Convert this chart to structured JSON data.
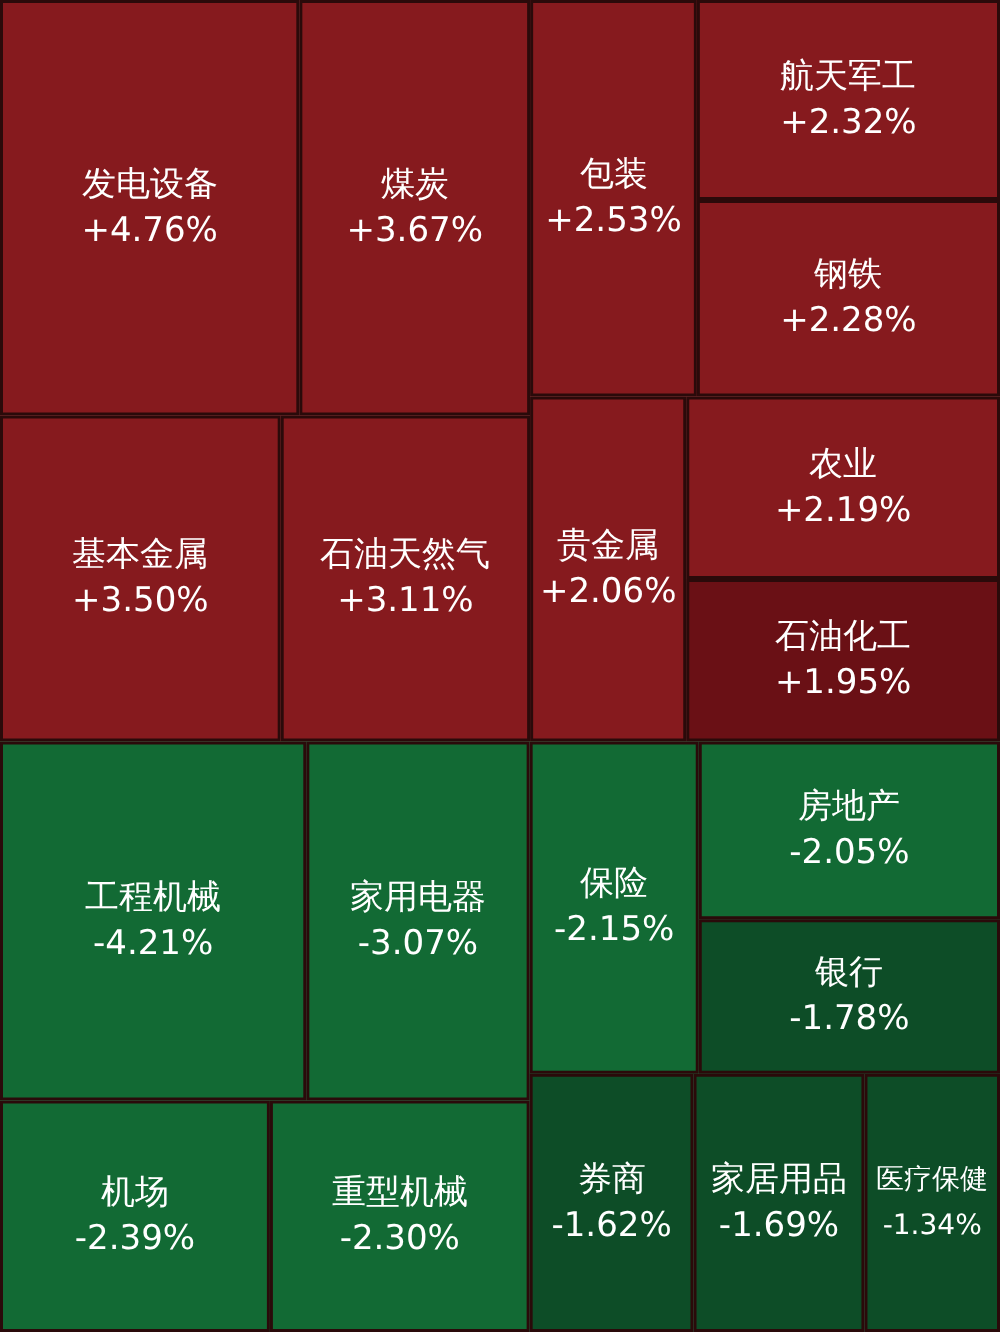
{
  "chart_data": {
    "type": "other",
    "categories": [
      "发电设备",
      "煤炭",
      "基本金属",
      "石油天然气",
      "包装",
      "航天军工",
      "钢铁",
      "贵金属",
      "农业",
      "石油化工",
      "工程机械",
      "家用电器",
      "机场",
      "重型机械",
      "保险",
      "房地产",
      "银行",
      "券商",
      "家居用品",
      "医疗保健"
    ],
    "values": [
      4.76,
      3.67,
      3.5,
      3.11,
      2.53,
      2.32,
      2.28,
      2.06,
      2.19,
      1.95,
      -4.21,
      -3.07,
      -2.39,
      -2.3,
      -2.15,
      -2.05,
      -1.78,
      -1.62,
      -1.69,
      -1.34
    ],
    "value_labels": [
      "+4.76%",
      "+3.67%",
      "+3.50%",
      "+3.11%",
      "+2.53%",
      "+2.32%",
      "+2.28%",
      "+2.06%",
      "+2.19%",
      "+1.95%",
      "-4.21%",
      "-3.07%",
      "-2.39%",
      "-2.30%",
      "-2.15%",
      "-2.05%",
      "-1.78%",
      "-1.62%",
      "-1.69%",
      "-1.34%"
    ],
    "colors": [
      "#861a1e",
      "#861a1e",
      "#861a1e",
      "#861a1e",
      "#861a1e",
      "#861a1e",
      "#861a1e",
      "#861a1e",
      "#861a1e",
      "#6a1015",
      "#126a34",
      "#126a34",
      "#126a34",
      "#126a34",
      "#126a34",
      "#126a34",
      "#0d4d27",
      "#0d4d27",
      "#0d4d27",
      "#0d4d27"
    ]
  }
}
